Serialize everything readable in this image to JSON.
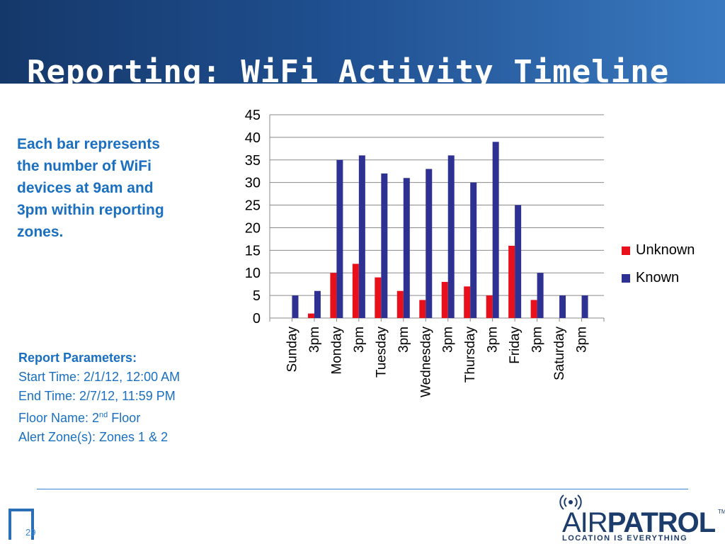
{
  "slide": {
    "title": "Reporting: WiFi Activity Timeline",
    "description": "Each bar represents the number of WiFi devices at 9am and 3pm within reporting zones.",
    "page_number": "29"
  },
  "parameters": {
    "heading": "Report Parameters:",
    "start_time": "Start Time: 2/1/12, 12:00 AM",
    "end_time": "End Time: 2/7/12, 11:59 PM",
    "floor_prefix": "Floor Name: 2",
    "floor_sup": "nd",
    "floor_suffix": " Floor",
    "alert_zones": "Alert Zone(s): Zones 1 & 2"
  },
  "logo": {
    "brand_thin": "AIR",
    "brand_bold": "PATROL",
    "trademark": "TM",
    "tagline": "LOCATION IS EVERYTHING"
  },
  "colors": {
    "unknown": "#e8101a",
    "known": "#2e3192",
    "accent": "#1a6fc0"
  },
  "chart_data": {
    "type": "bar",
    "categories": [
      "Sunday",
      "3pm",
      "Monday",
      "3pm",
      "Tuesday",
      "3pm",
      "Wednesday",
      "3pm",
      "Thursday",
      "3pm",
      "Friday",
      "3pm",
      "Saturday",
      "3pm"
    ],
    "series": [
      {
        "name": "Unknown",
        "color": "#e8101a",
        "values": [
          0,
          1,
          10,
          12,
          9,
          6,
          4,
          8,
          7,
          5,
          16,
          4,
          0,
          0
        ]
      },
      {
        "name": "Known",
        "color": "#2e3192",
        "values": [
          5,
          6,
          35,
          36,
          32,
          31,
          33,
          36,
          30,
          39,
          25,
          10,
          5,
          5
        ]
      }
    ],
    "yticks": [
      0,
      5,
      10,
      15,
      20,
      25,
      30,
      35,
      40,
      45
    ],
    "ylim": [
      0,
      45
    ],
    "grid": true,
    "legend_position": "right"
  }
}
